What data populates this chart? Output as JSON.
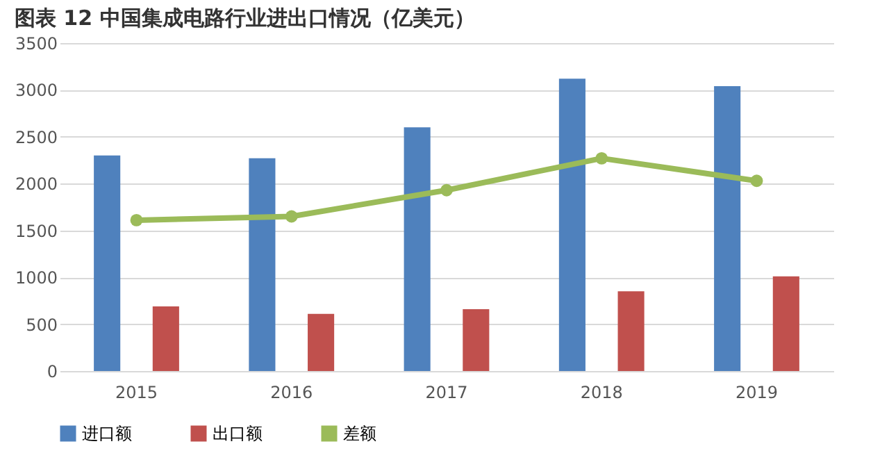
{
  "chart_data": {
    "type": "bar",
    "title": "图表 12  中国集成电路行业进出口情况（亿美元）",
    "categories": [
      "2015",
      "2016",
      "2017",
      "2018",
      "2019"
    ],
    "series": [
      {
        "name": "进口额",
        "color": "#4f81bd",
        "values": [
          2300,
          2270,
          2600,
          3120,
          3040
        ]
      },
      {
        "name": "出口额",
        "color": "#c0504d",
        "values": [
          690,
          610,
          660,
          850,
          1010
        ]
      },
      {
        "name": "差额",
        "color": "#9bbb59",
        "type": "line",
        "marker": "circle",
        "values": [
          1610,
          1650,
          1930,
          2270,
          2030
        ]
      }
    ],
    "ylim": [
      0,
      3500
    ],
    "yticks": [
      0,
      500,
      1000,
      1500,
      2000,
      2500,
      3000,
      3500
    ],
    "grid": "y",
    "legend": "bottom"
  }
}
